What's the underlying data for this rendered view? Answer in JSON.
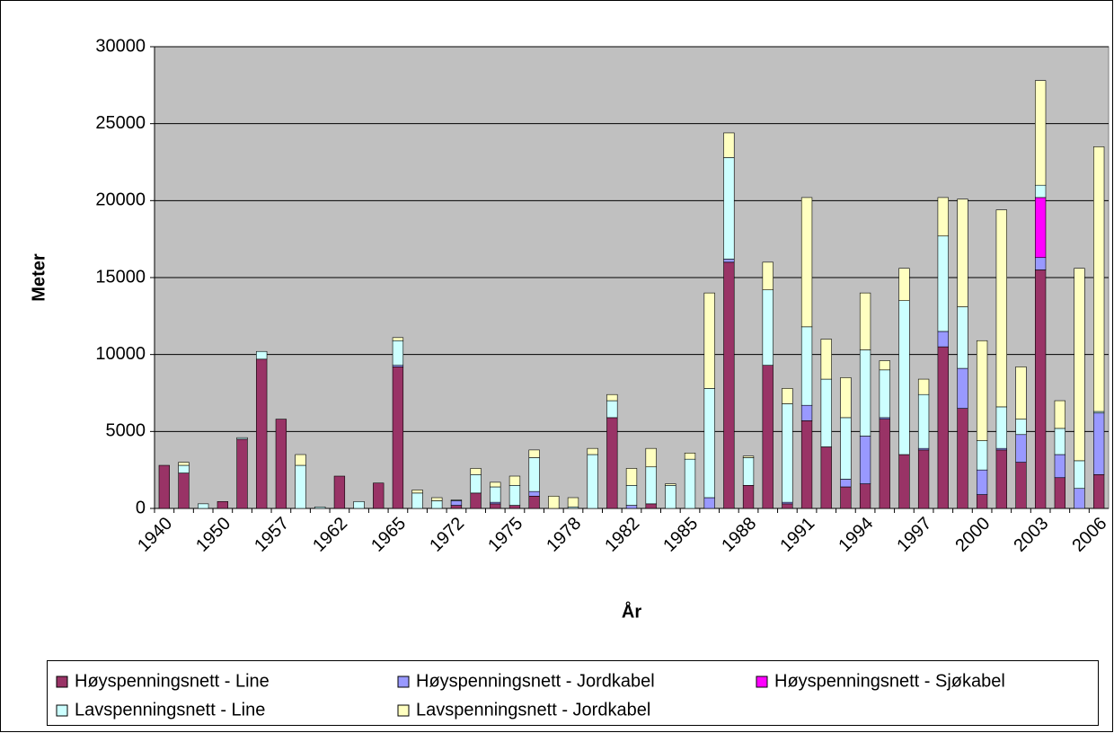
{
  "chart_data": {
    "type": "stacked_bar",
    "x_label": "År",
    "y_label": "Meter",
    "categories": [
      "1940",
      null,
      null,
      "1950",
      null,
      null,
      "1957",
      null,
      null,
      "1962",
      null,
      null,
      "1965",
      null,
      null,
      "1972",
      null,
      null,
      "1975",
      null,
      null,
      "1978",
      null,
      null,
      "1982",
      null,
      null,
      "1985",
      null,
      null,
      "1988",
      null,
      null,
      "1991",
      null,
      null,
      "1994",
      null,
      null,
      "1997",
      null,
      null,
      "2000",
      null,
      null,
      "2003",
      null,
      null,
      "2006"
    ],
    "series": [
      {
        "name": "Høyspenningsnett - Line",
        "color": "#993366",
        "values": [
          2800,
          2300,
          0,
          450,
          4500,
          9700,
          5800,
          0,
          0,
          2100,
          0,
          1650,
          9200,
          0,
          0,
          200,
          1000,
          300,
          200,
          800,
          0,
          0,
          0,
          5900,
          0,
          300,
          0,
          0,
          0,
          16000,
          1500,
          9300,
          300,
          5700,
          4000,
          1400,
          1600,
          5800,
          3500,
          3800,
          10500,
          6500,
          900,
          3800,
          3000,
          15500,
          2000,
          0,
          2200
        ]
      },
      {
        "name": "Høyspenningsnett - Jordkabel",
        "color": "#9999FF",
        "values": [
          0,
          0,
          0,
          0,
          0,
          0,
          0,
          0,
          0,
          0,
          0,
          0,
          100,
          0,
          0,
          300,
          0,
          100,
          0,
          300,
          0,
          0,
          0,
          0,
          200,
          0,
          0,
          0,
          700,
          200,
          0,
          0,
          100,
          1000,
          0,
          500,
          3100,
          100,
          0,
          100,
          1000,
          2600,
          1600,
          100,
          1800,
          800,
          1500,
          1300,
          4000
        ]
      },
      {
        "name": "Høyspenningsnett - Sjøkabel",
        "color": "#FF00FF",
        "values": [
          0,
          0,
          0,
          0,
          0,
          0,
          0,
          0,
          0,
          0,
          0,
          0,
          0,
          0,
          0,
          0,
          0,
          0,
          0,
          0,
          0,
          0,
          0,
          0,
          0,
          0,
          0,
          0,
          0,
          0,
          0,
          0,
          0,
          0,
          0,
          0,
          0,
          0,
          0,
          0,
          0,
          0,
          0,
          0,
          0,
          3900,
          0,
          0,
          0
        ]
      },
      {
        "name": "Lavspenningsnett - Line",
        "color": "#CCFFFF",
        "values": [
          0,
          500,
          300,
          0,
          100,
          500,
          0,
          2800,
          100,
          0,
          450,
          0,
          1600,
          1000,
          500,
          50,
          1200,
          1000,
          1300,
          2200,
          0,
          100,
          3500,
          1100,
          1300,
          2400,
          1500,
          3200,
          7100,
          6600,
          1800,
          4900,
          6400,
          5100,
          4400,
          4000,
          5600,
          3100,
          10000,
          3500,
          6200,
          4000,
          1900,
          2700,
          1000,
          800,
          1700,
          1800,
          100
        ]
      },
      {
        "name": "Lavspenningsnett - Jordkabel",
        "color": "#FFFFC0",
        "values": [
          0,
          200,
          0,
          0,
          0,
          0,
          0,
          700,
          0,
          0,
          0,
          0,
          200,
          200,
          200,
          0,
          400,
          300,
          600,
          500,
          800,
          600,
          400,
          400,
          1100,
          1200,
          100,
          400,
          6200,
          1600,
          100,
          1800,
          1000,
          8400,
          2600,
          2600,
          3700,
          600,
          2100,
          1000,
          2500,
          7000,
          6500,
          12800,
          3400,
          6800,
          1800,
          12500,
          17200
        ]
      }
    ],
    "ylim": [
      0,
      30000
    ],
    "yticks": [
      0,
      5000,
      10000,
      15000,
      20000,
      25000,
      30000
    ],
    "grid": true
  }
}
